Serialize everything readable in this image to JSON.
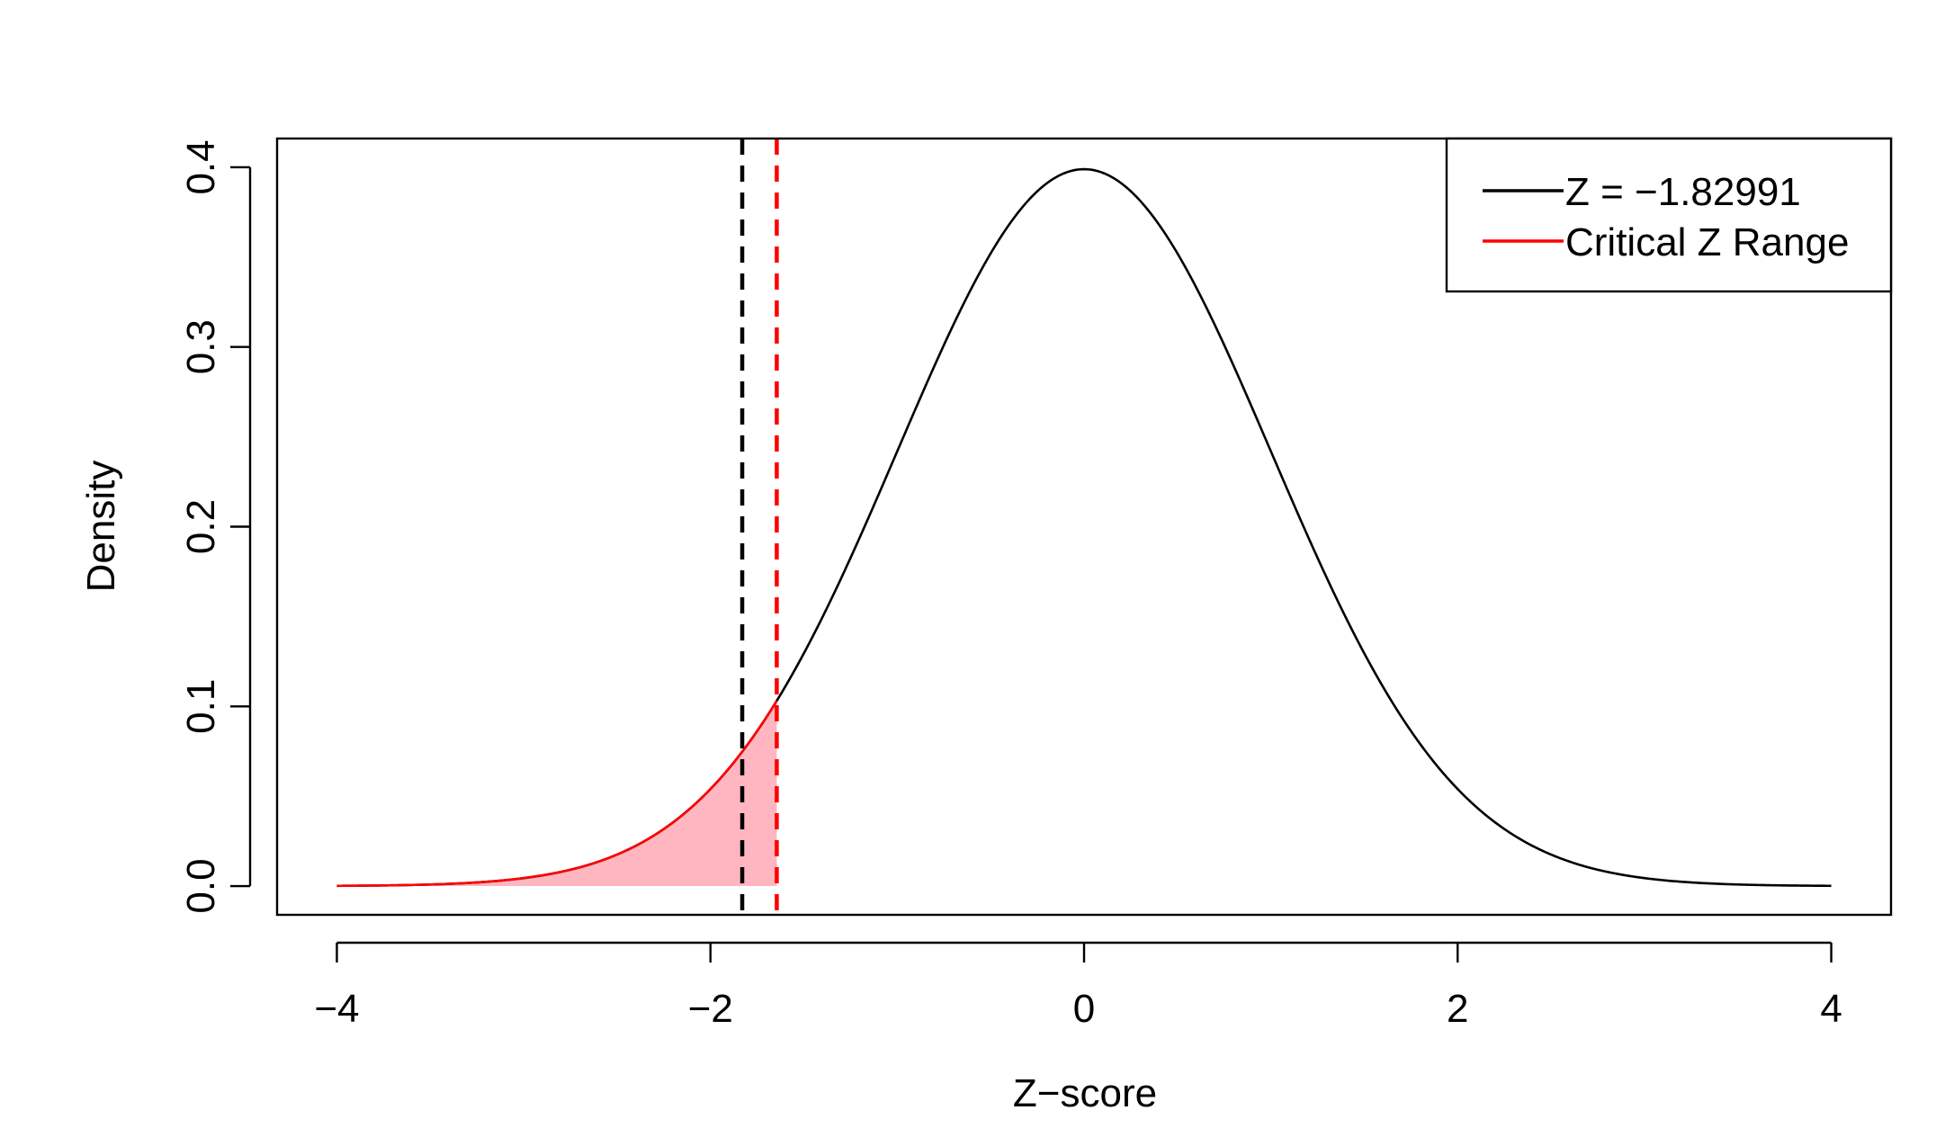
{
  "chart_data": {
    "type": "line",
    "title": "",
    "xlabel": "Z−score",
    "ylabel": "Density",
    "xlim": [
      -4.32,
      4.32
    ],
    "ylim": [
      -0.016,
      0.416
    ],
    "xticks": [
      -4,
      -2,
      0,
      2,
      4
    ],
    "xtick_labels": [
      "−4",
      "−2",
      "0",
      "2",
      "4"
    ],
    "yticks": [
      0.0,
      0.1,
      0.2,
      0.3,
      0.4
    ],
    "ytick_labels": [
      "0.0",
      "0.1",
      "0.2",
      "0.3",
      "0.4"
    ],
    "curve": {
      "distribution": "standard normal density",
      "x_range": [
        -4,
        4
      ],
      "color": "#000000"
    },
    "shaded_region": {
      "x_range": [
        -4,
        -1.645
      ],
      "fill": "#ffb6c1",
      "edge_color": "#ff0000"
    },
    "vlines": [
      {
        "x": -1.82991,
        "color": "#000000",
        "style": "dashed"
      },
      {
        "x": -1.645,
        "color": "#ff0000",
        "style": "dashed"
      }
    ],
    "legend": {
      "position": "top-right",
      "entries": [
        {
          "label": "Z = −1.82991",
          "color": "#000000"
        },
        {
          "label": "Critical Z Range",
          "color": "#ff0000"
        }
      ]
    },
    "grid": false
  }
}
